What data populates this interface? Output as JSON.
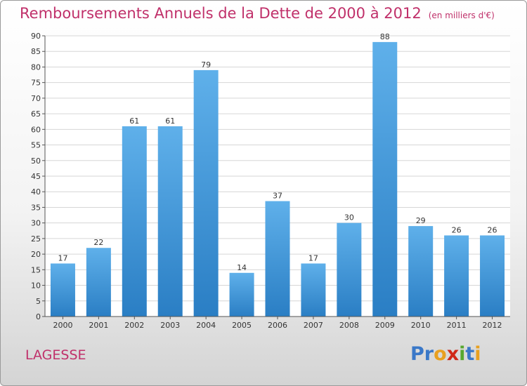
{
  "title": "Remboursements Annuels de la Dette de 2000 à 2012",
  "subtitle": "(en milliers d'€)",
  "commune": "LAGESSE",
  "brand": {
    "letters": [
      "P",
      "r",
      "o",
      "x",
      "i",
      "t",
      "i"
    ],
    "colors": [
      "#3a78c8",
      "#3a78c8",
      "#e8a020",
      "#d02818",
      "#58a830",
      "#3a78c8",
      "#e8a020"
    ]
  },
  "chart_data": {
    "type": "bar",
    "categories": [
      "2000",
      "2001",
      "2002",
      "2003",
      "2004",
      "2005",
      "2006",
      "2007",
      "2008",
      "2009",
      "2010",
      "2011",
      "2012"
    ],
    "values": [
      17,
      22,
      61,
      61,
      79,
      14,
      37,
      17,
      30,
      88,
      29,
      26,
      26
    ],
    "ylim": [
      0,
      90
    ],
    "yticks": [
      0,
      5,
      10,
      15,
      20,
      25,
      30,
      35,
      40,
      45,
      50,
      55,
      60,
      65,
      70,
      75,
      80,
      85,
      90
    ],
    "grid": true,
    "colors": {
      "bar_top": "#5fb0ea",
      "bar_bottom": "#2a7ec4",
      "grid": "#d6d6d6"
    }
  }
}
